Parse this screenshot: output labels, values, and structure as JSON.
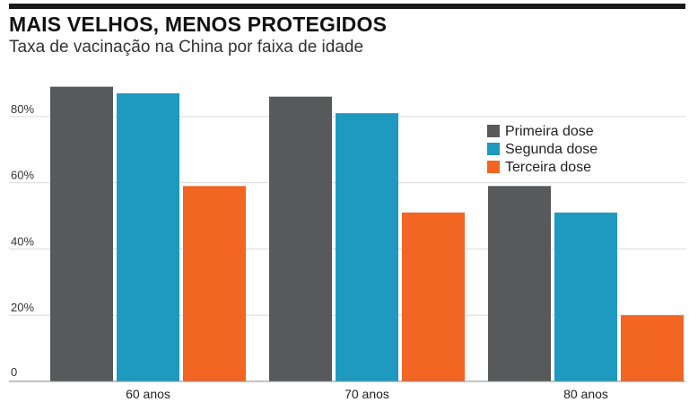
{
  "title": "MAIS VELHOS, MENOS PROTEGIDOS",
  "subtitle": "Taxa de vacinação na China por faixa de idade",
  "colors": {
    "primeira": "#58595b",
    "segunda": "#1e9ac0",
    "terceira": "#f26522",
    "grid": "#d9d9d9",
    "baseline": "#888888"
  },
  "chart_data": {
    "type": "bar",
    "title": "MAIS VELHOS, MENOS PROTEGIDOS",
    "subtitle": "Taxa de vacinação na China por faixa de idade",
    "categories": [
      "60 anos",
      "70 anos",
      "80 anos"
    ],
    "series": [
      {
        "name": "Primeira dose",
        "values": [
          89,
          86,
          59
        ]
      },
      {
        "name": "Segunda dose",
        "values": [
          87,
          81,
          51
        ]
      },
      {
        "name": "Terceira dose",
        "values": [
          59,
          51,
          20
        ]
      }
    ],
    "ylim": [
      0,
      90
    ],
    "yticks": [
      0,
      20,
      40,
      60,
      80
    ],
    "ytick_labels": [
      "0",
      "20%",
      "40%",
      "60%",
      "80%"
    ],
    "xlabel": "",
    "ylabel": "",
    "grid": true,
    "legend": "top-right"
  }
}
